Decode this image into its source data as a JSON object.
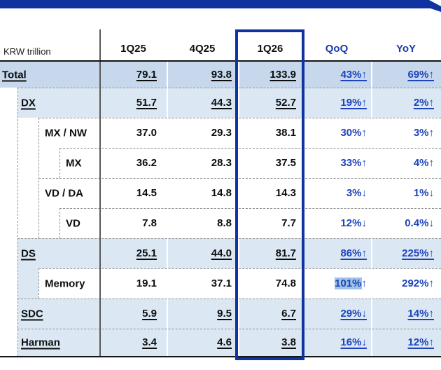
{
  "unit_label": "KRW trillion",
  "table": {
    "columns": [
      "1Q25",
      "4Q25",
      "1Q26",
      "QoQ",
      "YoY"
    ],
    "highlighted_column": "1Q26",
    "rows": [
      {
        "label": "Total",
        "indent": 0,
        "group": true,
        "style": "total",
        "values": [
          "79.1",
          "93.8",
          "133.9"
        ],
        "qoq": {
          "value": "43%",
          "dir": "up",
          "selected": false
        },
        "yoy": {
          "value": "69%",
          "dir": "up"
        }
      },
      {
        "label": "DX",
        "indent": 1,
        "group": true,
        "style": "group",
        "values": [
          "51.7",
          "44.3",
          "52.7"
        ],
        "qoq": {
          "value": "19%",
          "dir": "up",
          "selected": false
        },
        "yoy": {
          "value": "2%",
          "dir": "up"
        }
      },
      {
        "label": "MX / NW",
        "indent": 2,
        "group": false,
        "style": "sub",
        "values": [
          "37.0",
          "29.3",
          "38.1"
        ],
        "qoq": {
          "value": "30%",
          "dir": "up",
          "selected": false
        },
        "yoy": {
          "value": "3%",
          "dir": "up"
        }
      },
      {
        "label": "MX",
        "indent": 3,
        "group": false,
        "style": "sub",
        "values": [
          "36.2",
          "28.3",
          "37.5"
        ],
        "qoq": {
          "value": "33%",
          "dir": "up",
          "selected": false
        },
        "yoy": {
          "value": "4%",
          "dir": "up"
        }
      },
      {
        "label": "VD / DA",
        "indent": 2,
        "group": false,
        "style": "sub",
        "values": [
          "14.5",
          "14.8",
          "14.3"
        ],
        "qoq": {
          "value": "3%",
          "dir": "down",
          "selected": false
        },
        "yoy": {
          "value": "1%",
          "dir": "down"
        }
      },
      {
        "label": "VD",
        "indent": 3,
        "group": false,
        "style": "sub",
        "values": [
          "7.8",
          "8.8",
          "7.7"
        ],
        "qoq": {
          "value": "12%",
          "dir": "down",
          "selected": false
        },
        "yoy": {
          "value": "0.4%",
          "dir": "down"
        }
      },
      {
        "label": "DS",
        "indent": 1,
        "group": true,
        "style": "group",
        "values": [
          "25.1",
          "44.0",
          "81.7"
        ],
        "qoq": {
          "value": "86%",
          "dir": "up",
          "selected": false
        },
        "yoy": {
          "value": "225%",
          "dir": "up"
        }
      },
      {
        "label": "Memory",
        "indent": 2,
        "group": false,
        "style": "memory",
        "values": [
          "19.1",
          "37.1",
          "74.8"
        ],
        "qoq": {
          "value": "101%",
          "dir": "up",
          "selected": true
        },
        "yoy": {
          "value": "292%",
          "dir": "up"
        }
      },
      {
        "label": "SDC",
        "indent": 1,
        "group": true,
        "style": "group",
        "values": [
          "5.9",
          "9.5",
          "6.7"
        ],
        "qoq": {
          "value": "29%",
          "dir": "down",
          "selected": false
        },
        "yoy": {
          "value": "14%",
          "dir": "up"
        }
      },
      {
        "label": "Harman",
        "indent": 1,
        "group": true,
        "style": "group",
        "values": [
          "3.4",
          "4.6",
          "3.8"
        ],
        "qoq": {
          "value": "16%",
          "dir": "down",
          "selected": false
        },
        "yoy": {
          "value": "12%",
          "dir": "up"
        }
      }
    ]
  },
  "icons": {
    "up_arrow": "↑",
    "down_arrow": "↓"
  },
  "colors": {
    "banner_navy": "#1133a0",
    "highlight_box_navy": "#1133a0",
    "header_blue": "#1b3cac",
    "percent_blue": "#1d44bc",
    "total_row_bg": "#c7d7ec",
    "group_row_bg": "#dbe8f4",
    "selection_highlight": "#9dc3e6"
  },
  "chart_data": {
    "type": "table",
    "title": "Revenue by segment (KRW trillion)",
    "columns": [
      "1Q25",
      "4Q25",
      "1Q26",
      "QoQ",
      "YoY"
    ],
    "series": [
      {
        "name": "Total",
        "values": [
          79.1,
          93.8,
          133.9
        ],
        "qoq_pct": "+43%",
        "yoy_pct": "+69%"
      },
      {
        "name": "DX",
        "values": [
          51.7,
          44.3,
          52.7
        ],
        "qoq_pct": "+19%",
        "yoy_pct": "+2%"
      },
      {
        "name": "MX / NW",
        "values": [
          37.0,
          29.3,
          38.1
        ],
        "qoq_pct": "+30%",
        "yoy_pct": "+3%"
      },
      {
        "name": "MX",
        "values": [
          36.2,
          28.3,
          37.5
        ],
        "qoq_pct": "+33%",
        "yoy_pct": "+4%"
      },
      {
        "name": "VD / DA",
        "values": [
          14.5,
          14.8,
          14.3
        ],
        "qoq_pct": "-3%",
        "yoy_pct": "-1%"
      },
      {
        "name": "VD",
        "values": [
          7.8,
          8.8,
          7.7
        ],
        "qoq_pct": "-12%",
        "yoy_pct": "-0.4%"
      },
      {
        "name": "DS",
        "values": [
          25.1,
          44.0,
          81.7
        ],
        "qoq_pct": "+86%",
        "yoy_pct": "+225%"
      },
      {
        "name": "Memory",
        "values": [
          19.1,
          37.1,
          74.8
        ],
        "qoq_pct": "+101%",
        "yoy_pct": "+292%"
      },
      {
        "name": "SDC",
        "values": [
          5.9,
          9.5,
          6.7
        ],
        "qoq_pct": "-29%",
        "yoy_pct": "+14%"
      },
      {
        "name": "Harman",
        "values": [
          3.4,
          4.6,
          3.8
        ],
        "qoq_pct": "-16%",
        "yoy_pct": "+12%"
      }
    ]
  }
}
